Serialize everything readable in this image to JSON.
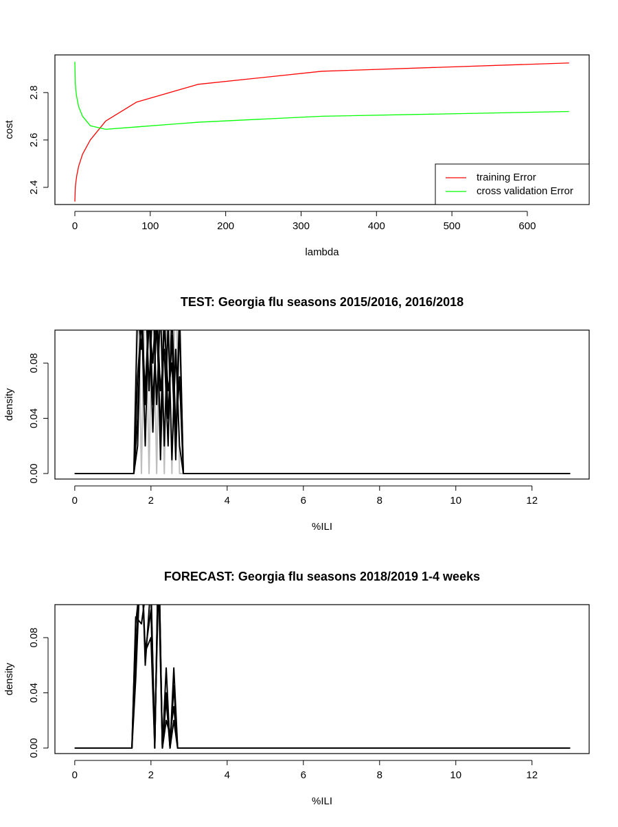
{
  "chart_data": [
    {
      "type": "line",
      "xlabel": "lambda",
      "ylabel": "cost",
      "x": [
        0,
        0.64,
        1.28,
        2.56,
        5.12,
        10.24,
        20.48,
        40.96,
        81.92,
        163.84,
        327.68,
        655.36
      ],
      "series": [
        {
          "name": "training Error",
          "color": "#ff0000",
          "values": [
            2.34,
            2.4,
            2.42,
            2.45,
            2.49,
            2.54,
            2.6,
            2.68,
            2.76,
            2.835,
            2.89,
            2.925
          ]
        },
        {
          "name": "cross validation Error",
          "color": "#00ff00",
          "values": [
            2.93,
            2.84,
            2.81,
            2.78,
            2.74,
            2.7,
            2.66,
            2.645,
            2.655,
            2.675,
            2.7,
            2.72
          ]
        }
      ],
      "xlim": [
        -26.4,
        682
      ],
      "ylim": [
        2.3275,
        2.959
      ],
      "xticks": [
        0,
        100,
        200,
        300,
        400,
        500,
        600
      ],
      "yticks": [
        2.4,
        2.6,
        2.8
      ],
      "legend": "bottomright"
    },
    {
      "type": "line",
      "title": "TEST: Georgia  flu seasons 2015/2016, 2016/2018",
      "xlabel": "%ILI",
      "ylabel": "density",
      "x": [
        0,
        1.55,
        1.65,
        1.75,
        1.85,
        1.95,
        2.05,
        2.15,
        2.25,
        2.35,
        2.45,
        2.55,
        2.65,
        2.75,
        2.85,
        13
      ],
      "series": [
        {
          "color": "#bebebe",
          "values": [
            0,
            0,
            0.15,
            0,
            0.15,
            0,
            0.15,
            0,
            0.15,
            0,
            0.15,
            0,
            0.15,
            0,
            0,
            0
          ]
        },
        {
          "color": "#000000",
          "values": [
            0,
            0,
            0.12,
            0.09,
            0.14,
            0.06,
            0.13,
            0.05,
            0.12,
            0.02,
            0.11,
            0.01,
            0.09,
            0.02,
            0,
            0
          ]
        },
        {
          "color": "#000000",
          "values": [
            0,
            0,
            0.04,
            0.12,
            0.02,
            0.13,
            0.05,
            0.11,
            0.03,
            0.12,
            0.04,
            0.1,
            0.01,
            0.11,
            0,
            0
          ]
        },
        {
          "color": "#000000",
          "values": [
            0,
            0,
            0.07,
            0.11,
            0.06,
            0.12,
            0.03,
            0.12,
            0.06,
            0.09,
            0.02,
            0.12,
            0.03,
            0.07,
            0,
            0
          ]
        },
        {
          "color": "#000000",
          "values": [
            0,
            0,
            0.02,
            0.13,
            0.05,
            0.11,
            0.08,
            0.13,
            0.01,
            0.11,
            0.06,
            0.08,
            0.02,
            0.12,
            0,
            0
          ]
        }
      ],
      "xlim": [
        -0.52,
        13.5
      ],
      "ylim": [
        -0.004,
        0.1039
      ],
      "xticks": [
        0,
        2,
        4,
        6,
        8,
        10,
        12
      ],
      "yticks": [
        {
          "value": 0,
          "label": "0.00"
        },
        0.04,
        0.08
      ]
    },
    {
      "type": "line",
      "title": "FORECAST: Georgia flu seasons 2018/2019 1-4 weeks",
      "xlabel": "%ILI",
      "ylabel": "density",
      "x": [
        0,
        1.5,
        1.6,
        1.75,
        1.85,
        2.0,
        2.1,
        2.2,
        2.3,
        2.4,
        2.5,
        2.6,
        2.7,
        2.8,
        13
      ],
      "series": [
        {
          "color": "#000000",
          "values": [
            0,
            0,
            0.05,
            0.15,
            0.06,
            0.12,
            0,
            0.15,
            0,
            0.058,
            0,
            0.058,
            0,
            0,
            0
          ]
        },
        {
          "color": "#000000",
          "values": [
            0,
            0,
            0.07,
            0.14,
            0.07,
            0.1,
            0,
            0.14,
            0,
            0.04,
            0,
            0.045,
            0,
            0,
            0
          ]
        },
        {
          "color": "#000000",
          "values": [
            0,
            0,
            0.09,
            0.13,
            0.07,
            0.08,
            0,
            0.15,
            0,
            0.02,
            0.01,
            0.03,
            0,
            0,
            0
          ]
        },
        {
          "color": "#000000",
          "values": [
            0,
            0,
            0.095,
            0.09,
            0.11,
            0.11,
            0.01,
            0.12,
            0,
            0.035,
            0,
            0.02,
            0,
            0,
            0
          ]
        }
      ],
      "xlim": [
        -0.52,
        13.5
      ],
      "ylim": [
        -0.004,
        0.1039
      ],
      "xticks": [
        0,
        2,
        4,
        6,
        8,
        10,
        12
      ],
      "yticks": [
        {
          "value": 0,
          "label": "0.00"
        },
        0.04,
        0.08
      ]
    }
  ]
}
